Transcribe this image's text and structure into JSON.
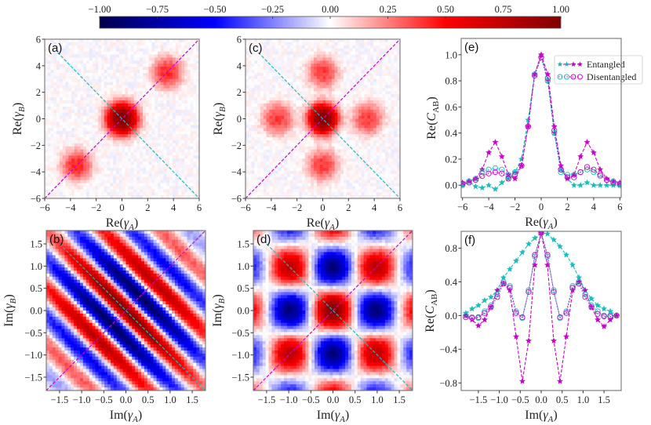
{
  "colorbar": {
    "colormap": "seismic",
    "range": [
      -1,
      1
    ],
    "ticks": [
      -1,
      -0.75,
      -0.5,
      -0.25,
      0,
      0.25,
      0.5,
      0.75,
      1
    ],
    "tick_labels": [
      "−1.00",
      "−0.75",
      "−0.50",
      "−0.25",
      "0.00",
      "0.25",
      "0.50",
      "0.75",
      "1.00"
    ],
    "colors": {
      "-1": "#00004c",
      "-0.5": "#0000ff",
      "0": "#ffffff",
      "0.5": "#ff0000",
      "1": "#800000"
    }
  },
  "chart_data": [
    {
      "id": "a",
      "type": "heatmap",
      "panel_label": "(a)",
      "xlabel": {
        "pre": "Re(",
        "sym": "γ",
        "sub": "A",
        "post": ")"
      },
      "ylabel": {
        "pre": "Re(",
        "sym": "γ",
        "sub": "B",
        "post": ")"
      },
      "xlim": [
        -6,
        6
      ],
      "ylim": [
        -6,
        6
      ],
      "xticks": [
        -6,
        -4,
        -2,
        0,
        2,
        4,
        6
      ],
      "xtick_labels": [
        "−6",
        "−4",
        "−2",
        "0",
        "2",
        "4",
        "6"
      ],
      "yticks": [
        -6,
        -4,
        -2,
        0,
        2,
        4,
        6
      ],
      "ytick_labels": [
        "−6",
        "−4",
        "−2",
        "0",
        "2",
        "4",
        "6"
      ],
      "pattern": {
        "kind": "peaks",
        "peaks": [
          {
            "x": 0,
            "y": 0,
            "value": 1.0,
            "width": 0.9
          },
          {
            "x": 3.5,
            "y": 3.5,
            "value": 0.42,
            "width": 0.85
          },
          {
            "x": -3.5,
            "y": -3.5,
            "value": 0.42,
            "width": 0.85
          }
        ]
      },
      "cuts": [
        {
          "color": "#cc00cc",
          "from": [
            -6,
            -6
          ],
          "to": [
            6,
            6
          ]
        },
        {
          "color": "#17bebb",
          "from": [
            -5,
            5
          ],
          "to": [
            6,
            -6
          ]
        }
      ]
    },
    {
      "id": "c",
      "type": "heatmap",
      "panel_label": "(c)",
      "xlabel": {
        "pre": "Re(",
        "sym": "γ",
        "sub": "A",
        "post": ")"
      },
      "ylabel": {
        "pre": "Re(",
        "sym": "γ",
        "sub": "B",
        "post": ")"
      },
      "xlim": [
        -6,
        6
      ],
      "ylim": [
        -6,
        6
      ],
      "xticks": [
        -6,
        -4,
        -2,
        0,
        2,
        4,
        6
      ],
      "xtick_labels": [
        "−6",
        "−4",
        "−2",
        "0",
        "2",
        "4",
        "6"
      ],
      "yticks": [
        -6,
        -4,
        -2,
        0,
        2,
        4,
        6
      ],
      "ytick_labels": [
        "−6",
        "−4",
        "−2",
        "0",
        "2",
        "4",
        "6"
      ],
      "pattern": {
        "kind": "peaks",
        "peaks": [
          {
            "x": 0,
            "y": 0,
            "value": 1.0,
            "width": 0.85
          },
          {
            "x": 3.5,
            "y": 0,
            "value": 0.38,
            "width": 0.85
          },
          {
            "x": -3.5,
            "y": 0,
            "value": 0.38,
            "width": 0.85
          },
          {
            "x": 0,
            "y": 3.5,
            "value": 0.38,
            "width": 0.85
          },
          {
            "x": 0,
            "y": -3.5,
            "value": 0.38,
            "width": 0.85
          }
        ]
      },
      "cuts": [
        {
          "color": "#cc00cc",
          "from": [
            -6,
            -6
          ],
          "to": [
            6,
            6
          ]
        },
        {
          "color": "#17bebb",
          "from": [
            -5,
            5
          ],
          "to": [
            6,
            -6
          ]
        }
      ]
    },
    {
      "id": "b",
      "type": "heatmap",
      "panel_label": "(b)",
      "xlabel": {
        "pre": "Im(",
        "sym": "γ",
        "sub": "A",
        "post": ")"
      },
      "ylabel": {
        "pre": "Im(",
        "sym": "γ",
        "sub": "B",
        "post": ")"
      },
      "xlim": [
        -1.8,
        1.8
      ],
      "ylim": [
        -1.8,
        1.8
      ],
      "xticks": [
        -1.5,
        -1,
        -0.5,
        0,
        0.5,
        1,
        1.5
      ],
      "xtick_labels": [
        "−1.5",
        "−1.0",
        "−0.5",
        "0.0",
        "0.5",
        "1.0",
        "1.5"
      ],
      "yticks": [
        -1.5,
        -1,
        -0.5,
        0,
        0.5,
        1,
        1.5
      ],
      "ytick_labels": [
        "−1.5",
        "−1.0",
        "−0.5",
        "0.0",
        "0.5",
        "1.0",
        "1.5"
      ],
      "pattern": {
        "kind": "diagonal-fringes",
        "period": 1.3,
        "value": 1.0
      },
      "cuts": [
        {
          "color": "#cc00cc",
          "from": [
            -1.8,
            -1.8
          ],
          "to": [
            1.8,
            1.8
          ]
        },
        {
          "color": "#17bebb",
          "from": [
            -1.5,
            1.5
          ],
          "to": [
            1.8,
            -1.8
          ]
        }
      ]
    },
    {
      "id": "d",
      "type": "heatmap",
      "panel_label": "(d)",
      "xlabel": {
        "pre": "Im(",
        "sym": "γ",
        "sub": "A",
        "post": ")"
      },
      "ylabel": {
        "pre": "Im(",
        "sym": "γ",
        "sub": "B",
        "post": ")"
      },
      "xlim": [
        -1.8,
        1.8
      ],
      "ylim": [
        -1.8,
        1.8
      ],
      "xticks": [
        -1.5,
        -1,
        -0.5,
        0,
        0.5,
        1,
        1.5
      ],
      "xtick_labels": [
        "−1.5",
        "−1.0",
        "−0.5",
        "0.0",
        "0.5",
        "1.0",
        "1.5"
      ],
      "yticks": [
        -1.5,
        -1,
        -0.5,
        0,
        0.5,
        1,
        1.5
      ],
      "ytick_labels": [
        "−1.5",
        "−1.0",
        "−0.5",
        "0.0",
        "0.5",
        "1.0",
        "1.5"
      ],
      "pattern": {
        "kind": "checkerboard",
        "period": 2.0,
        "value": 1.0
      },
      "cuts": [
        {
          "color": "#cc00cc",
          "from": [
            -1.8,
            -1.8
          ],
          "to": [
            1.8,
            1.8
          ]
        },
        {
          "color": "#17bebb",
          "from": [
            -1.5,
            1.5
          ],
          "to": [
            1.8,
            -1.8
          ]
        }
      ]
    },
    {
      "id": "e",
      "type": "line",
      "panel_label": "(e)",
      "xlabel": {
        "pre": "Re(",
        "sym": "γ",
        "sub": "A",
        "post": ")"
      },
      "ylabel": {
        "pre": "Re(",
        "sym": "C",
        "sub": "AB",
        "post": ")"
      },
      "xlim": [
        -6.1,
        6.1
      ],
      "ylim": [
        -0.095,
        1.125
      ],
      "xticks": [
        -6,
        -4,
        -2,
        0,
        2,
        4,
        6
      ],
      "xtick_labels": [
        "−6",
        "−4",
        "−2",
        "0",
        "2",
        "4",
        "6"
      ],
      "yticks": [
        0,
        0.2,
        0.4,
        0.6,
        0.8,
        1.0
      ],
      "ytick_labels": [
        "0.0",
        "0.2",
        "0.4",
        "0.6",
        "0.8",
        "1.0"
      ],
      "legend": {
        "placement": "top-right",
        "entries": [
          "Entangled",
          "Disentangled"
        ]
      },
      "x": [
        -6,
        -5.5,
        -5,
        -4.5,
        -4,
        -3.5,
        -3,
        -2.5,
        -2,
        -1.5,
        -1,
        -0.5,
        0,
        0.5,
        1,
        1.5,
        2,
        2.5,
        3,
        3.5,
        4,
        4.5,
        5,
        5.5,
        6
      ],
      "series": [
        {
          "group": "Entangled",
          "color": "#17bebb",
          "marker": "star",
          "values": [
            0.0,
            0.03,
            -0.01,
            -0.02,
            0.0,
            -0.03,
            0.02,
            0.05,
            0.1,
            0.2,
            0.5,
            0.85,
            1.0,
            0.8,
            0.4,
            0.12,
            0.05,
            0.0,
            0.0,
            0.02,
            0.0,
            0.0,
            0.0,
            0.0,
            0.0
          ]
        },
        {
          "group": "Entangled",
          "color": "#cc00cc",
          "marker": "star",
          "values": [
            0.02,
            0.03,
            0.05,
            0.12,
            0.25,
            0.33,
            0.22,
            0.08,
            0.05,
            0.15,
            0.45,
            0.85,
            1.0,
            0.85,
            0.45,
            0.15,
            0.05,
            0.08,
            0.22,
            0.33,
            0.25,
            0.12,
            0.05,
            0.03,
            0.02
          ]
        },
        {
          "group": "Disentangled",
          "color": "#17bebb",
          "marker": "circle",
          "values": [
            0.0,
            0.03,
            0.05,
            0.1,
            0.12,
            0.13,
            0.12,
            0.08,
            0.1,
            0.15,
            0.45,
            0.85,
            0.98,
            0.8,
            0.4,
            0.1,
            0.08,
            0.08,
            0.1,
            0.12,
            0.1,
            0.07,
            0.04,
            0.03,
            0.0
          ]
        },
        {
          "group": "Disentangled",
          "color": "#cc00cc",
          "marker": "circle",
          "values": [
            0.01,
            0.02,
            0.04,
            0.07,
            0.09,
            0.1,
            0.09,
            0.05,
            0.08,
            0.15,
            0.45,
            0.84,
            0.98,
            0.82,
            0.42,
            0.12,
            0.06,
            0.06,
            0.1,
            0.14,
            0.12,
            0.08,
            0.04,
            0.02,
            0.01
          ]
        }
      ]
    },
    {
      "id": "f",
      "type": "line",
      "panel_label": "(f)",
      "xlabel": {
        "pre": "Im(",
        "sym": "γ",
        "sub": "A",
        "post": ")"
      },
      "ylabel": {
        "pre": "Re(",
        "sym": "C",
        "sub": "AB",
        "post": ")"
      },
      "xlim": [
        -1.91,
        1.91
      ],
      "ylim": [
        -0.89,
        1.0
      ],
      "xticks": [
        -1.5,
        -1,
        -0.5,
        0,
        0.5,
        1,
        1.5
      ],
      "xtick_labels": [
        "−1.5",
        "−1.0",
        "−0.5",
        "0.0",
        "0.5",
        "1.0",
        "1.5"
      ],
      "yticks": [
        -0.8,
        -0.4,
        0,
        0.4,
        0.8
      ],
      "ytick_labels": [
        "−0.8",
        "−0.4",
        "0.0",
        "0.4",
        "0.8"
      ],
      "x": [
        -1.8,
        -1.65,
        -1.5,
        -1.35,
        -1.2,
        -1.05,
        -0.9,
        -0.75,
        -0.6,
        -0.45,
        -0.3,
        -0.15,
        0,
        0.15,
        0.3,
        0.45,
        0.6,
        0.75,
        0.9,
        1.05,
        1.2,
        1.35,
        1.5,
        1.65,
        1.8
      ],
      "series": [
        {
          "group": "Entangled",
          "color": "#17bebb",
          "marker": "star",
          "values": [
            0.03,
            0.08,
            0.12,
            0.18,
            0.22,
            0.3,
            0.45,
            0.55,
            0.65,
            0.75,
            0.85,
            0.92,
            0.98,
            0.97,
            0.9,
            0.82,
            0.72,
            0.6,
            0.45,
            0.3,
            0.2,
            0.12,
            0.08,
            0.05,
            0.0
          ]
        },
        {
          "group": "Entangled",
          "color": "#cc00cc",
          "marker": "star",
          "values": [
            0.0,
            -0.05,
            -0.12,
            -0.05,
            0.1,
            0.3,
            0.38,
            0.3,
            -0.25,
            -0.78,
            -0.3,
            0.6,
            0.98,
            0.6,
            -0.3,
            -0.78,
            -0.25,
            0.3,
            0.4,
            0.3,
            0.1,
            -0.05,
            -0.13,
            -0.05,
            0.0
          ]
        },
        {
          "group": "Disentangled",
          "color": "#17bebb",
          "marker": "circle",
          "values": [
            0.0,
            -0.02,
            -0.03,
            0.05,
            0.12,
            0.25,
            0.4,
            0.35,
            0.05,
            -0.03,
            0.3,
            0.7,
            0.98,
            0.7,
            0.3,
            -0.03,
            0.05,
            0.35,
            0.4,
            0.25,
            0.12,
            0.05,
            0.0,
            0.0,
            0.0
          ]
        },
        {
          "group": "Disentangled",
          "color": "#cc00cc",
          "marker": "circle",
          "values": [
            -0.02,
            -0.03,
            -0.02,
            0.03,
            0.1,
            0.22,
            0.38,
            0.33,
            0.03,
            -0.02,
            0.28,
            0.72,
            0.98,
            0.72,
            0.28,
            -0.02,
            0.03,
            0.33,
            0.38,
            0.22,
            0.1,
            0.02,
            -0.01,
            -0.01,
            0.0
          ]
        }
      ]
    }
  ]
}
